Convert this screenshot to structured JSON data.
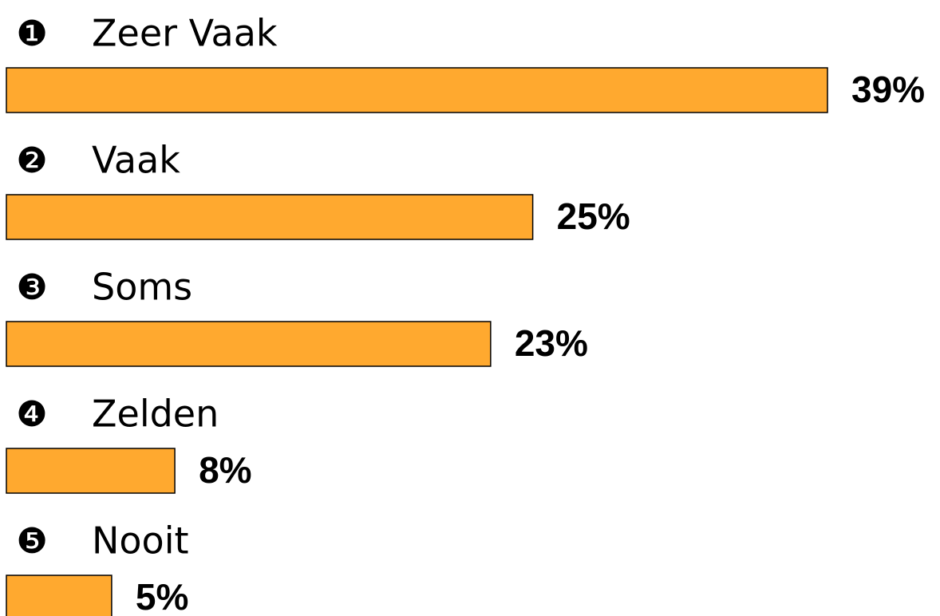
{
  "chart_data": {
    "type": "hbar",
    "markers": [
      "❶",
      "❷",
      "❸",
      "❹",
      "❺"
    ],
    "categories": [
      "Zeer Vaak",
      "Vaak",
      "Soms",
      "Zelden",
      "Nooit"
    ],
    "values": [
      39,
      25,
      23,
      8,
      5
    ],
    "value_labels": [
      "39%",
      "25%",
      "23%",
      "8%",
      "5%"
    ],
    "color": "#ffa92f"
  }
}
